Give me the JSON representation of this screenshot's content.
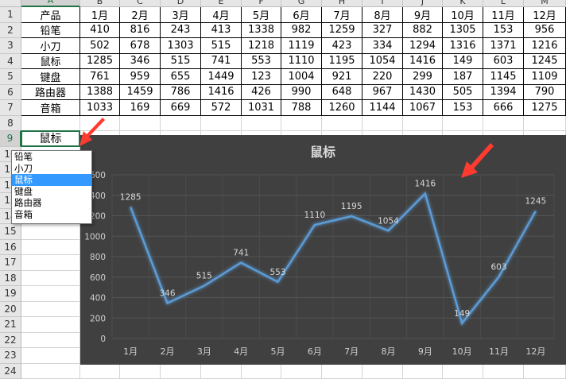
{
  "sheet": {
    "columns": [
      "A",
      "B",
      "C",
      "D",
      "E",
      "F",
      "G",
      "H",
      "I",
      "J",
      "K",
      "L",
      "M"
    ],
    "rows": [
      "1",
      "2",
      "3",
      "4",
      "5",
      "6",
      "7",
      "8",
      "9",
      "10",
      "11",
      "12",
      "13",
      "14",
      "15",
      "16",
      "17",
      "18",
      "19",
      "20",
      "21",
      "22",
      "23",
      "24"
    ],
    "table": {
      "header": [
        "产品",
        "1月",
        "2月",
        "3月",
        "4月",
        "5月",
        "6月",
        "7月",
        "8月",
        "9月",
        "10月",
        "11月",
        "12月"
      ],
      "body": [
        [
          "铅笔",
          "410",
          "816",
          "243",
          "413",
          "1338",
          "982",
          "1259",
          "327",
          "882",
          "1305",
          "153",
          "956"
        ],
        [
          "小刀",
          "502",
          "678",
          "1303",
          "515",
          "1218",
          "1119",
          "423",
          "334",
          "1294",
          "1316",
          "1371",
          "1216"
        ],
        [
          "鼠标",
          "1285",
          "346",
          "515",
          "741",
          "553",
          "1110",
          "1195",
          "1054",
          "1416",
          "149",
          "603",
          "1245"
        ],
        [
          "键盘",
          "761",
          "959",
          "655",
          "1449",
          "123",
          "1004",
          "921",
          "220",
          "299",
          "187",
          "1145",
          "1109"
        ],
        [
          "路由器",
          "1388",
          "1459",
          "786",
          "1416",
          "426",
          "990",
          "648",
          "967",
          "1430",
          "505",
          "1394",
          "790"
        ],
        [
          "音箱",
          "1033",
          "169",
          "669",
          "572",
          "1031",
          "788",
          "1260",
          "1144",
          "1067",
          "153",
          "666",
          "1275"
        ]
      ]
    },
    "selector_value": "鼠标"
  },
  "dropdown": {
    "options": [
      "铅笔",
      "小刀",
      "鼠标",
      "键盘",
      "路由器",
      "音箱"
    ],
    "selected_index": 2
  },
  "colors": {
    "chart_bg": "#404040",
    "line": "#5b9bd5",
    "arrow": "#ff3b30",
    "selection": "#217346",
    "highlight": "#3399ff"
  },
  "chart_data": {
    "type": "line",
    "title": "鼠标",
    "categories": [
      "1月",
      "2月",
      "3月",
      "4月",
      "5月",
      "6月",
      "7月",
      "8月",
      "9月",
      "10月",
      "11月",
      "12月"
    ],
    "series": [
      {
        "values": [
          1285,
          346,
          515,
          741,
          553,
          1110,
          1195,
          1054,
          1416,
          149,
          603,
          1245
        ]
      }
    ],
    "y_ticks": [
      "0",
      "200",
      "400",
      "600",
      "800",
      "1000",
      "1200",
      "1400",
      "1600"
    ],
    "ylim": [
      0,
      1600
    ],
    "grid": true,
    "data_labels": true
  }
}
